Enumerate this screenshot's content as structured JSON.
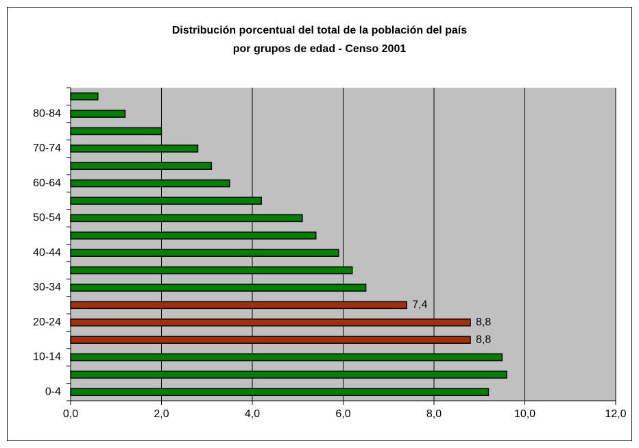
{
  "chart_data": {
    "type": "bar",
    "orientation": "horizontal",
    "title": [
      "Distribución porcentual del total de la población del país",
      "por grupos de edad - Censo 2001"
    ],
    "categories": [
      "0-4",
      null,
      "10-14",
      null,
      "20-24",
      null,
      "30-34",
      null,
      "40-44",
      null,
      "50-54",
      null,
      "60-64",
      null,
      "70-74",
      null,
      "80-84",
      null
    ],
    "values": [
      9.2,
      9.6,
      9.5,
      8.8,
      8.8,
      7.4,
      6.5,
      6.2,
      5.9,
      5.4,
      5.1,
      4.2,
      3.5,
      3.1,
      2.8,
      2.0,
      1.2,
      0.6
    ],
    "value_labels": [
      null,
      null,
      null,
      "8,8",
      "8,8",
      "7,4",
      null,
      null,
      null,
      null,
      null,
      null,
      null,
      null,
      null,
      null,
      null,
      null
    ],
    "colors": [
      "#008000",
      "#008000",
      "#008000",
      "#a0300e",
      "#a0300e",
      "#a0300e",
      "#008000",
      "#008000",
      "#008000",
      "#008000",
      "#008000",
      "#008000",
      "#008000",
      "#008000",
      "#008000",
      "#008000",
      "#008000",
      "#008000"
    ],
    "xlim": [
      0,
      12
    ],
    "xticks": [
      {
        "value": 0,
        "label": "0,0"
      },
      {
        "value": 2,
        "label": "2,0"
      },
      {
        "value": 4,
        "label": "4,0"
      },
      {
        "value": 6,
        "label": "6,0"
      },
      {
        "value": 8,
        "label": "8,0"
      },
      {
        "value": 10,
        "label": "10,0"
      },
      {
        "value": 12,
        "label": "12,0"
      }
    ],
    "grid": true
  }
}
